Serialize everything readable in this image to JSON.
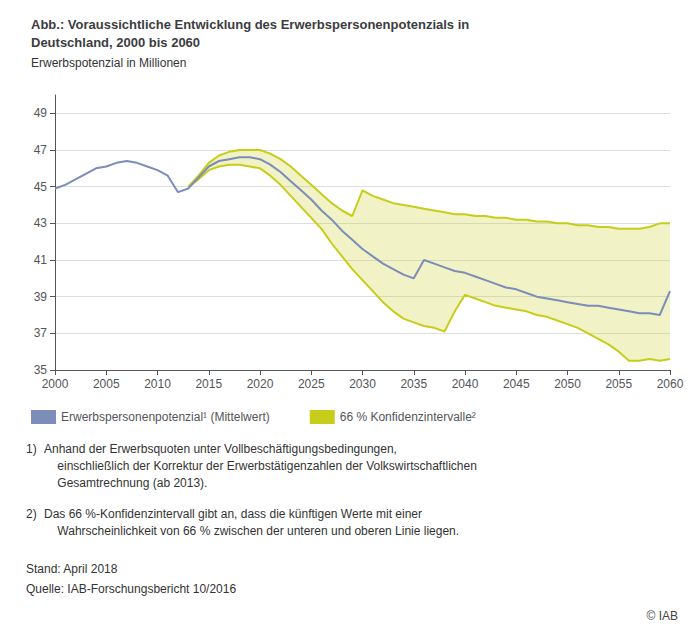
{
  "chart_data": {
    "type": "line",
    "title": "Abb.: Voraussichtliche Entwicklung des Erwerbspersonenpotenzials in\nDeutschland, 2000 bis 2060",
    "subtitle": "Erwerbspotenzial in Millionen",
    "xlim": [
      2000,
      2060
    ],
    "xticks": [
      2000,
      2005,
      2010,
      2015,
      2020,
      2025,
      2030,
      2035,
      2040,
      2045,
      2050,
      2055,
      2060
    ],
    "ylim": [
      35,
      50
    ],
    "yticks": [
      35,
      37,
      39,
      41,
      43,
      45,
      47,
      49
    ],
    "grid": true,
    "legend": "bottom",
    "series": [
      {
        "name": "Erwerbspersonenpotenzial¹ (Mittelwert)",
        "type": "line",
        "color": "#7b8db8",
        "x": [
          2000,
          2001,
          2002,
          2003,
          2004,
          2005,
          2006,
          2007,
          2008,
          2009,
          2010,
          2011,
          2012,
          2013,
          2014,
          2015,
          2016,
          2017,
          2018,
          2019,
          2020,
          2021,
          2022,
          2023,
          2024,
          2025,
          2026,
          2027,
          2028,
          2029,
          2030,
          2031,
          2032,
          2033,
          2034,
          2035,
          2036,
          2037,
          2038,
          2039,
          2040,
          2041,
          2042,
          2043,
          2044,
          2045,
          2046,
          2047,
          2048,
          2049,
          2050,
          2051,
          2052,
          2053,
          2054,
          2055,
          2056,
          2057,
          2058,
          2059,
          2060
        ],
        "values": [
          44.9,
          45.1,
          45.4,
          45.7,
          46.0,
          46.1,
          46.3,
          46.4,
          46.3,
          46.1,
          45.9,
          45.6,
          44.7,
          44.9,
          45.5,
          46.1,
          46.4,
          46.5,
          46.6,
          46.6,
          46.5,
          46.2,
          45.8,
          45.3,
          44.8,
          44.3,
          43.7,
          43.2,
          42.6,
          42.1,
          41.6,
          41.2,
          40.8,
          40.5,
          40.2,
          40.0,
          41.0,
          40.8,
          40.6,
          40.4,
          40.3,
          40.1,
          39.9,
          39.7,
          39.5,
          39.4,
          39.2,
          39.0,
          38.9,
          38.8,
          38.7,
          38.6,
          38.5,
          38.5,
          38.4,
          38.3,
          38.2,
          38.1,
          38.1,
          38.0,
          39.3
        ]
      },
      {
        "name": "66 % Konfidenzintervalle²",
        "type": "band",
        "color": "#c8cc1a",
        "x": [
          2013,
          2014,
          2015,
          2016,
          2017,
          2018,
          2019,
          2020,
          2021,
          2022,
          2023,
          2024,
          2025,
          2026,
          2027,
          2028,
          2029,
          2030,
          2031,
          2032,
          2033,
          2034,
          2035,
          2036,
          2037,
          2038,
          2039,
          2040,
          2041,
          2042,
          2043,
          2044,
          2045,
          2046,
          2047,
          2048,
          2049,
          2050,
          2051,
          2052,
          2053,
          2054,
          2055,
          2056,
          2057,
          2058,
          2059,
          2060
        ],
        "upper": [
          45.0,
          45.6,
          46.3,
          46.7,
          46.9,
          47.0,
          47.0,
          47.0,
          46.8,
          46.5,
          46.1,
          45.6,
          45.1,
          44.6,
          44.1,
          43.7,
          43.4,
          44.8,
          44.5,
          44.3,
          44.1,
          44.0,
          43.9,
          43.8,
          43.7,
          43.6,
          43.5,
          43.5,
          43.4,
          43.4,
          43.3,
          43.3,
          43.2,
          43.2,
          43.1,
          43.1,
          43.0,
          43.0,
          42.9,
          42.9,
          42.8,
          42.8,
          42.7,
          42.7,
          42.7,
          42.8,
          43.0,
          43.0
        ],
        "lower": [
          45.0,
          45.4,
          45.9,
          46.1,
          46.2,
          46.2,
          46.1,
          46.0,
          45.6,
          45.1,
          44.5,
          43.9,
          43.3,
          42.7,
          41.9,
          41.2,
          40.5,
          39.9,
          39.3,
          38.7,
          38.2,
          37.8,
          37.6,
          37.4,
          37.3,
          37.1,
          38.2,
          39.1,
          38.9,
          38.7,
          38.5,
          38.4,
          38.3,
          38.2,
          38.0,
          37.9,
          37.7,
          37.5,
          37.3,
          37.0,
          36.7,
          36.4,
          36.0,
          35.5,
          35.5,
          35.6,
          35.5,
          35.6
        ]
      }
    ],
    "annotations": [
      "1)",
      "Anhand der Erwerbsquoten unter Vollbeschäftigungsbedingungen,\n    einschließlich der Korrektur der Erwerbstätigenzahlen der Volkswirtschaftlichen\n    Gesamtrechnung (ab 2013).",
      "2)",
      "Das 66 %-Konfidenzintervall gibt an, dass die künftigen Werte mit einer\n    Wahrscheinlichkeit von 66 % zwischen der unteren und oberen Linie liegen.",
      "Stand: April 2018",
      "Quelle: IAB-Forschungsbericht 10/2016",
      "© IAB"
    ]
  }
}
